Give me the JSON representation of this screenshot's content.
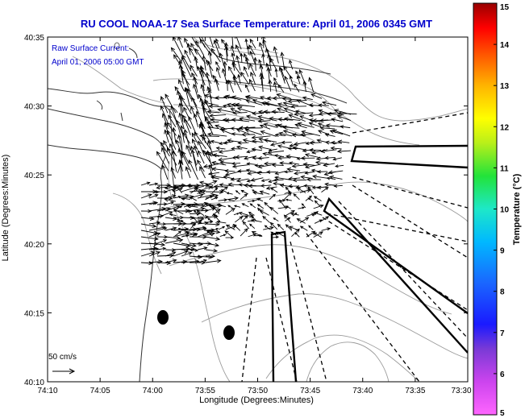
{
  "title": "RU COOL  NOAA-17  Sea Surface Temperature:  April 01, 2006 0345 GMT",
  "annotation": {
    "line1": "Raw Surface Current:",
    "line2": "April 01, 2006 05:00 GMT"
  },
  "scale_label": "50 cm/s",
  "map": {
    "xlabel": "Longitude (Degrees:Minutes)",
    "ylabel": "Latitude (Degrees:Minutes)",
    "x_ticks": [
      "74:10",
      "74:05",
      "74:00",
      "73:55",
      "73:50",
      "73:45",
      "73:40",
      "73:35",
      "73:30"
    ],
    "y_ticks": [
      "40:35",
      "40:30",
      "40:25",
      "40:20",
      "40:15",
      "40:10"
    ]
  },
  "colorbar": {
    "label": "Temperature (°C)",
    "ticks": [
      "15",
      "14",
      "13",
      "12",
      "11",
      "10",
      "9",
      "8",
      "7",
      "6",
      "5"
    ],
    "range": [
      5,
      15
    ]
  },
  "colors": {
    "title": "#0000cc",
    "annotation": "#0000cc",
    "coast": "#333333",
    "bathymetry": "#999999"
  }
}
